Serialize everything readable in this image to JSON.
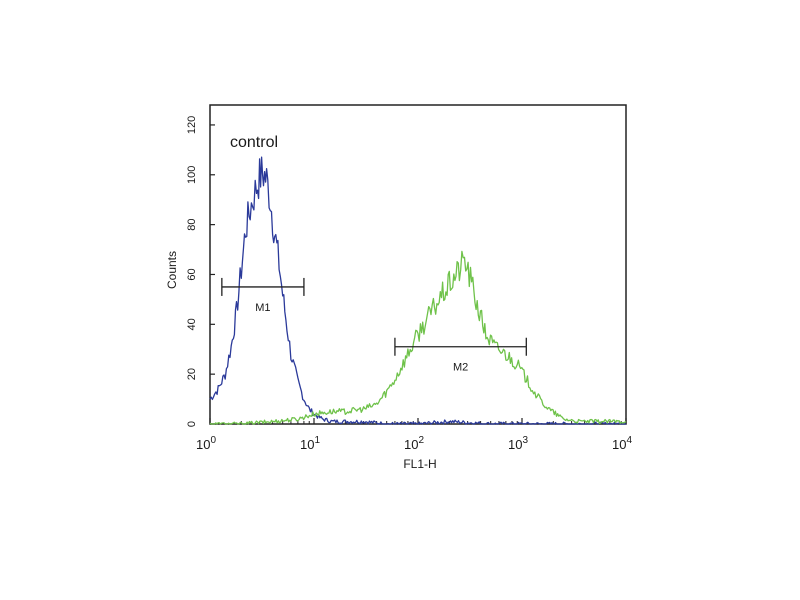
{
  "chart_data": {
    "type": "line",
    "title": "",
    "annotation": "control",
    "xlabel": "FL1-H",
    "ylabel": "Counts",
    "x_scale": "log10",
    "xlim": [
      1,
      10000
    ],
    "ylim": [
      0,
      128
    ],
    "x_ticks": [
      {
        "base": "10",
        "exp": "0",
        "value": 1
      },
      {
        "base": "10",
        "exp": "1",
        "value": 10
      },
      {
        "base": "10",
        "exp": "2",
        "value": 100
      },
      {
        "base": "10",
        "exp": "3",
        "value": 1000
      },
      {
        "base": "10",
        "exp": "4",
        "value": 10000
      }
    ],
    "y_ticks": [
      "0",
      "20",
      "40",
      "60",
      "80",
      "100",
      "120"
    ],
    "grid": false,
    "series": [
      {
        "color": "#2b3a9a",
        "x": [
          1.0,
          1.2,
          1.4,
          1.6,
          1.8,
          2.0,
          2.2,
          2.5,
          2.8,
          3.0,
          3.2,
          3.5,
          3.8,
          4.0,
          4.5,
          5.0,
          5.5,
          6.0,
          7.0,
          8.0,
          9.0,
          10,
          12,
          15,
          20,
          30,
          50,
          100,
          200,
          500,
          1000,
          10000
        ],
        "y": [
          10,
          14,
          20,
          31,
          45,
          62,
          78,
          88,
          95,
          99,
          101,
          98,
          90,
          82,
          68,
          52,
          39,
          28,
          17,
          10,
          6,
          4,
          2,
          1,
          1,
          1,
          0,
          0,
          1,
          0,
          0,
          0
        ]
      },
      {
        "color": "#6fc24a",
        "x": [
          1.0,
          2.0,
          4.0,
          7.0,
          10,
          15,
          20,
          30,
          40,
          50,
          60,
          80,
          100,
          130,
          160,
          200,
          250,
          280,
          320,
          380,
          450,
          550,
          700,
          900,
          1100,
          1400,
          1800,
          2500,
          3500,
          5000,
          10000
        ],
        "y": [
          0,
          0,
          1,
          2,
          4,
          5,
          5,
          6,
          8,
          13,
          18,
          28,
          36,
          44,
          50,
          56,
          62,
          66,
          58,
          46,
          36,
          31,
          28,
          24,
          18,
          11,
          6,
          2,
          1,
          1,
          1
        ]
      }
    ],
    "markers": [
      {
        "label": "M1",
        "y": 55,
        "x_start": 1.3,
        "x_end": 8.0
      },
      {
        "label": "M2",
        "y": 31,
        "x_start": 60,
        "x_end": 1100
      }
    ]
  }
}
